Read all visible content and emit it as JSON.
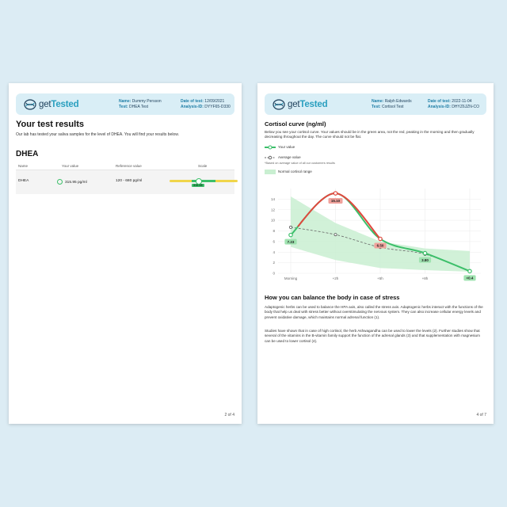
{
  "left_page": {
    "logo": {
      "pre": "get",
      "post": "Tested"
    },
    "header": {
      "name_label": "Name:",
      "name_value": "Dummy Persson",
      "test_label": "Test:",
      "test_value": "DHEA Test",
      "date_label": "Date of test:",
      "date_value": "12/09/2021",
      "analysis_label": "Analysis-ID:",
      "analysis_value": "DYYF65-D330"
    },
    "title": "Your test results",
    "intro": "Our lab has tested your saliva samples for the level of DHEA. You will find your results below.",
    "section": "DHEA",
    "table": {
      "headers": [
        "Name",
        "Your value",
        "Reference value",
        "Scale"
      ],
      "row": {
        "name": "DHEA",
        "value": "315.95 pg/ml",
        "reference": "120 - 680 pg/ml",
        "scale_tag": "315.95",
        "scale_fraction": 0.35
      }
    },
    "page_number": "2 of 4"
  },
  "right_page": {
    "logo": {
      "pre": "get",
      "post": "Tested"
    },
    "header": {
      "name_label": "Name:",
      "name_value": "Ralph Edwards",
      "test_label": "Test:",
      "test_value": "Cortisol Test",
      "date_label": "Date of test:",
      "date_value": "2022-11-04",
      "analysis_label": "Analysis-ID:",
      "analysis_value": "DHYZ6JZN-CO"
    },
    "title": "Cortisol curve (ng/ml)",
    "intro": "Below you see your cortisol curve. Your values should be in the green area, not the red, peaking in the morning and then gradually decreasing throughout the day. The curve should not be flat.",
    "legend": {
      "your_value": "Your value",
      "average_value": "Average value",
      "note": "*Based on average value of all our customers results",
      "normal_range": "Normal cortisol range"
    },
    "section2_title": "How you can balance the body in case of stress",
    "para1": "Adaptogenic herbs can be used to balance the HPA axis, also called the stress axis. Adaptogenic herbs interact with the functions of the body that help us deal with stress better without overstimulating the nervous system. They can also increase cellular energy levels and prevent oxidative damage, which maintains normal adrenal function (1).",
    "para2": "Studies have shown that in case of high cortisol, the herb Ashwagandha can be used to lower the levels (2). Further studies show that several of the vitamins in the B-vitamin family support the function of the adrenal glands (3) and that supplementation with magnesium can be used to lower cortisol (4).",
    "page_number": "4 of 7"
  },
  "colors": {
    "background": "#dcecf4",
    "header_bg": "#d9eef6",
    "brand_blue": "#2a9fbf",
    "green": "#3cbf6a",
    "red": "#e0483e",
    "normal_range": "#c9efd1"
  },
  "chart_data": {
    "type": "line",
    "x": [
      "Morning",
      "+2h",
      "+5h",
      "+8h",
      "+12h"
    ],
    "ylim": [
      0,
      16
    ],
    "yticks": [
      0,
      2,
      4,
      6,
      8,
      10,
      12,
      14
    ],
    "grid": true,
    "series": [
      {
        "name": "Your value",
        "values": [
          7.23,
          15.1,
          6.5,
          3.8,
          0.4
        ],
        "labels": [
          "7.23",
          "15.10",
          "6.50",
          "3.80",
          "<0.4"
        ]
      },
      {
        "name": "Average value",
        "values": [
          8.7,
          7.3,
          4.9,
          3.6,
          0.4
        ]
      }
    ],
    "normal_range": {
      "upper": [
        14.5,
        9.5,
        6.0,
        4.7,
        4.2
      ],
      "lower": [
        5.0,
        2.5,
        1.0,
        0.6,
        0.3
      ]
    }
  }
}
